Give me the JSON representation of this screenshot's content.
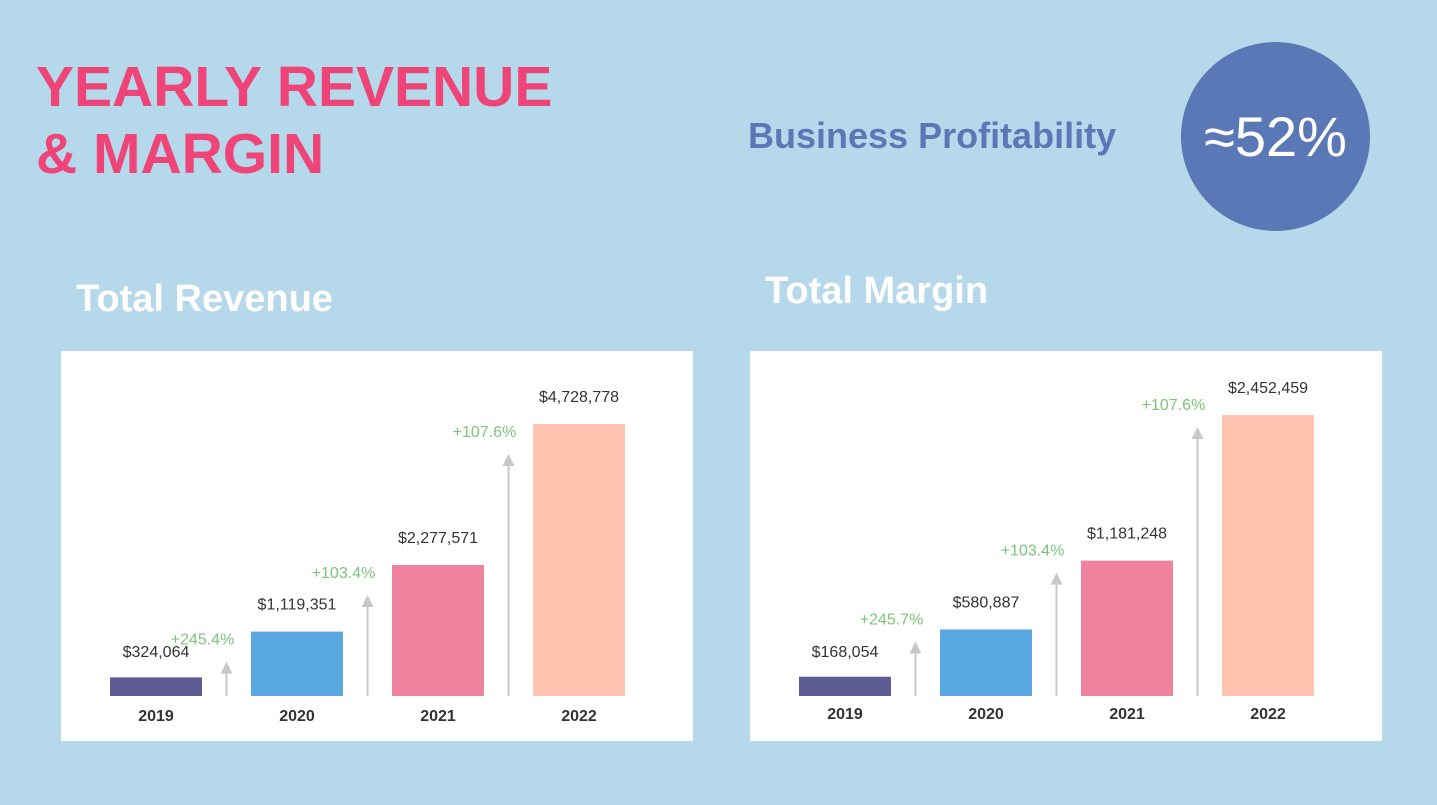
{
  "header": {
    "title_line1": "YEARLY REVENUE",
    "title_line2": "& MARGIN",
    "profitability_label": "Business Profitability",
    "profitability_value": "≈52%"
  },
  "colors": {
    "background": "#b5d8ea",
    "title": "#ef4478",
    "accent": "#5a77b6",
    "growth": "#7cc47c",
    "arrow": "#c8c8c8"
  },
  "chart_data": [
    {
      "type": "bar",
      "title": "Total Revenue",
      "categories": [
        "2019",
        "2020",
        "2021",
        "2022"
      ],
      "values": [
        324064,
        1119351,
        2277571,
        4728778
      ],
      "value_labels": [
        "$324,064",
        "$1,119,351",
        "$2,277,571",
        "$4,728,778"
      ],
      "bar_colors": [
        "#5e5d93",
        "#59a8e2",
        "#ef829e",
        "#ffc4b0"
      ],
      "growth_labels": [
        "+245.4%",
        "+103.4%",
        "+107.6%"
      ],
      "xlabel": "",
      "ylabel": "",
      "ylim": [
        0,
        4728778
      ],
      "grid": false,
      "legend": "none"
    },
    {
      "type": "bar",
      "title": "Total Margin",
      "categories": [
        "2019",
        "2020",
        "2021",
        "2022"
      ],
      "values": [
        168054,
        580887,
        1181248,
        2452459
      ],
      "value_labels": [
        "$168,054",
        "$580,887",
        "$1,181,248",
        "$2,452,459"
      ],
      "bar_colors": [
        "#5e5d93",
        "#59a8e2",
        "#ef829e",
        "#ffc4b0"
      ],
      "growth_labels": [
        "+245.7%",
        "+103.4%",
        "+107.6%"
      ],
      "xlabel": "",
      "ylabel": "",
      "ylim": [
        0,
        2452459
      ],
      "grid": false,
      "legend": "none"
    }
  ]
}
